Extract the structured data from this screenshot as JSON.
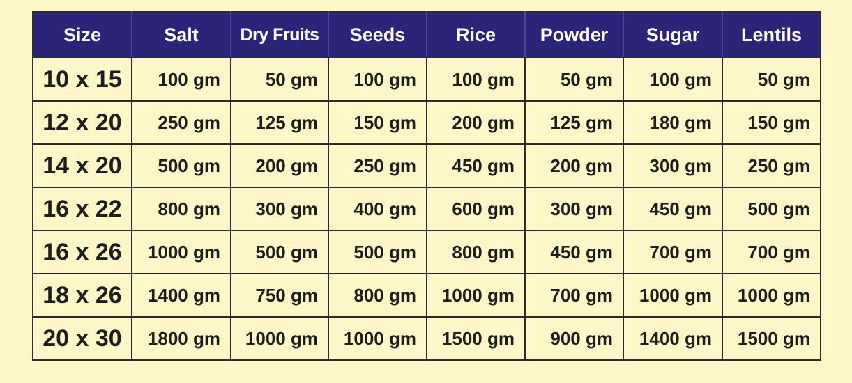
{
  "table": {
    "headers": [
      "Size",
      "Salt",
      "Dry Fruits",
      "Seeds",
      "Rice",
      "Powder",
      "Sugar",
      "Lentils"
    ],
    "rows": [
      [
        "10 x 15",
        "100 gm",
        "50 gm",
        "100 gm",
        "100 gm",
        "50 gm",
        "100 gm",
        "50 gm"
      ],
      [
        "12 x 20",
        "250 gm",
        "125 gm",
        "150 gm",
        "200 gm",
        "125 gm",
        "180 gm",
        "150 gm"
      ],
      [
        "14 x 20",
        "500 gm",
        "200 gm",
        "250 gm",
        "450 gm",
        "200 gm",
        "300 gm",
        "250 gm"
      ],
      [
        "16 x 22",
        "800 gm",
        "300 gm",
        "400 gm",
        "600 gm",
        "300 gm",
        "450 gm",
        "500 gm"
      ],
      [
        "16 x 26",
        "1000 gm",
        "500 gm",
        "500 gm",
        "800 gm",
        "450 gm",
        "700 gm",
        "700 gm"
      ],
      [
        "18 x 26",
        "1400 gm",
        "750 gm",
        "800 gm",
        "1000 gm",
        "700 gm",
        "1000 gm",
        "1000 gm"
      ],
      [
        "20 x 30",
        "1800 gm",
        "1000 gm",
        "1000 gm",
        "1500 gm",
        "900 gm",
        "1400 gm",
        "1500 gm"
      ]
    ]
  },
  "colors": {
    "background": "#fdf7c8",
    "header_background": "#2b2479",
    "header_text": "#ffffff",
    "cell_text": "#1d1d1d",
    "border": "#2c2a2a"
  }
}
